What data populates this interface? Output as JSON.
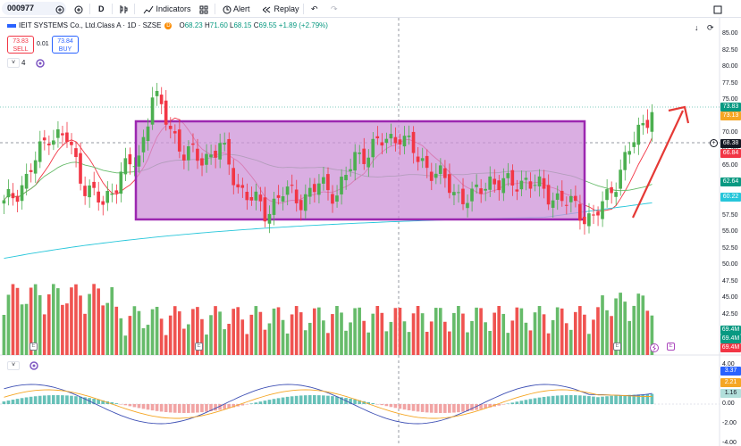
{
  "toolbar": {
    "symbol": "000977",
    "interval": "D",
    "indicators_label": "Indicators",
    "alert_label": "Alert",
    "replay_label": "Replay"
  },
  "legend": {
    "title": "IEIT SYSTEMS Co., Ltd.Class A · 1D · SZSE",
    "badge": "D",
    "o_label": "O",
    "o": "68.23",
    "h_label": "H",
    "h": "71.60",
    "l_label": "L",
    "l": "68.15",
    "c_label": "C",
    "c": "69.55",
    "change": "+1.89 (+2.79%)"
  },
  "trade": {
    "sell_price": "73.83",
    "sell_label": "SELL",
    "spread": "0.01",
    "buy_price": "73.84",
    "buy_label": "BUY"
  },
  "indicator_count": "4",
  "price_axis": {
    "ticks": [
      "85.00",
      "82.50",
      "80.00",
      "77.50",
      "75.00",
      "72.50",
      "70.00",
      "67.50",
      "65.00",
      "62.50",
      "60.00",
      "57.50",
      "55.00",
      "52.50",
      "50.00",
      "47.50",
      "45.00",
      "42.50"
    ],
    "tags": [
      {
        "value": "73.83",
        "color": "#089981"
      },
      {
        "value": "73.13",
        "color": "#f5a623"
      },
      {
        "value": "68.38",
        "color": "#131722"
      },
      {
        "value": "66.84",
        "color": "#f23645"
      },
      {
        "value": "62.64",
        "color": "#089981"
      },
      {
        "value": "60.22",
        "color": "#26c6da"
      },
      {
        "value": "69.4M",
        "color": "#089981"
      },
      {
        "value": "69.4M",
        "color": "#089981"
      },
      {
        "value": "69.4M",
        "color": "#f23645"
      }
    ]
  },
  "macd_axis": {
    "ticks": [
      "4.00",
      "2.00",
      "0.00",
      "-2.00",
      "-4.00"
    ],
    "tags": [
      {
        "value": "3.37",
        "color": "#2962ff"
      },
      {
        "value": "2.21",
        "color": "#f5a623"
      },
      {
        "value": "1.16",
        "color": "#b2dfdb"
      }
    ]
  },
  "colors": {
    "up": "#4caf50",
    "down": "#f23645",
    "box_fill": "#ce93d8",
    "box_border": "#9c27b0",
    "arrow": "#e53935",
    "ma_red": "#f23645",
    "ma_green": "#66bb6a",
    "ma_cyan": "#26c6da"
  },
  "earnings_mark": "E"
}
